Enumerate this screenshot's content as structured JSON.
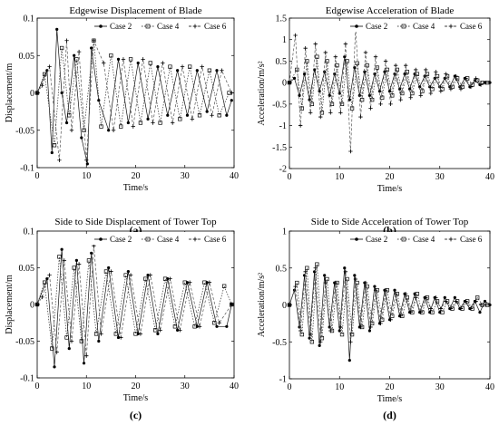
{
  "chart_data": [
    {
      "panel": "(a)",
      "type": "line",
      "title": "Edgewise Displacement of Blade",
      "xlabel": "Time/s",
      "ylabel": "Displacement/m",
      "xlim": [
        0,
        40
      ],
      "ylim": [
        -0.1,
        0.1
      ],
      "xticks": [
        "0",
        "10",
        "20",
        "30",
        "40"
      ],
      "yticks": [
        "-0.1",
        "-0.05",
        "0",
        "0.05",
        "0.1"
      ],
      "legend": "top-right",
      "series": [
        {
          "name": "Case 2",
          "marker": "dot",
          "x": [
            0.0,
            2.0,
            3.0,
            4.0,
            5.0,
            6.0,
            7.5,
            9.0,
            10.2,
            11.0,
            12.5,
            14.5,
            16.5,
            18.5,
            20.5,
            22.5,
            24.5,
            26.5,
            28.5,
            30.5,
            32.5,
            34.5,
            36.5,
            38.5,
            39.5
          ],
          "y": [
            0.0,
            0.03,
            -0.08,
            0.085,
            0.0,
            -0.04,
            0.05,
            -0.06,
            -0.095,
            0.06,
            -0.01,
            -0.05,
            0.045,
            -0.04,
            0.04,
            -0.035,
            0.035,
            -0.03,
            0.03,
            -0.03,
            0.03,
            -0.025,
            0.03,
            -0.03,
            -0.01
          ]
        },
        {
          "name": "Case 4",
          "marker": "square",
          "x": [
            0.0,
            1.5,
            3.5,
            5.0,
            6.5,
            8.0,
            9.5,
            11.5,
            13.0,
            15.0,
            17.0,
            19.0,
            21.0,
            23.0,
            25.0,
            27.0,
            29.0,
            31.0,
            33.0,
            35.0,
            37.0,
            39.0
          ],
          "y": [
            0.0,
            0.025,
            -0.07,
            0.06,
            -0.03,
            0.045,
            -0.05,
            0.07,
            -0.045,
            0.05,
            -0.045,
            0.045,
            -0.04,
            0.04,
            -0.04,
            0.035,
            -0.035,
            0.035,
            -0.03,
            0.03,
            -0.03,
            0.0
          ]
        },
        {
          "name": "Case 6",
          "marker": "plus",
          "x": [
            0.0,
            1.0,
            2.5,
            4.5,
            6.0,
            7.0,
            8.5,
            10.0,
            11.5,
            13.5,
            15.5,
            17.5,
            19.5,
            21.5,
            23.5,
            25.5,
            27.5,
            29.5,
            31.5,
            33.5,
            35.5,
            37.5,
            39.5
          ],
          "y": [
            0.0,
            0.01,
            0.035,
            -0.09,
            0.07,
            -0.05,
            0.055,
            -0.09,
            0.07,
            0.04,
            -0.05,
            0.045,
            -0.045,
            0.045,
            -0.04,
            0.04,
            -0.04,
            0.035,
            -0.035,
            0.035,
            -0.03,
            0.03,
            0.0
          ]
        }
      ]
    },
    {
      "panel": "(b)",
      "type": "line",
      "title": "Edgewise Acceleration of Blade",
      "xlabel": "Time/s",
      "ylabel": "Acceleration/m/s²",
      "xlim": [
        0,
        40
      ],
      "ylim": [
        -2,
        1.5
      ],
      "xticks": [
        "0",
        "10",
        "20",
        "30",
        "40"
      ],
      "yticks": [
        "-2",
        "-1.5",
        "-1",
        "-0.5",
        "0",
        "0.5",
        "1",
        "1.5"
      ],
      "legend": "top-right",
      "series": [
        {
          "name": "Case 2",
          "marker": "dot",
          "x": [
            0,
            1,
            2,
            3,
            4,
            5,
            6,
            7,
            8,
            9,
            10,
            11,
            12,
            13,
            14,
            15,
            16,
            17,
            18,
            19,
            20,
            21,
            22,
            23,
            24,
            25,
            26,
            27,
            28,
            29,
            30,
            31,
            32,
            33,
            34,
            35,
            36,
            37,
            38,
            39,
            40
          ],
          "y": [
            0.0,
            0.1,
            -0.3,
            0.2,
            -0.4,
            0.3,
            -0.2,
            0.25,
            -0.3,
            0.2,
            -0.25,
            0.6,
            -0.4,
            0.35,
            -0.3,
            0.25,
            -0.3,
            0.2,
            -0.2,
            0.25,
            -0.2,
            0.2,
            -0.15,
            0.2,
            -0.15,
            0.2,
            -0.1,
            0.15,
            -0.1,
            0.1,
            -0.1,
            0.1,
            -0.1,
            0.15,
            -0.1,
            0.1,
            -0.1,
            0.05,
            -0.05,
            0.0,
            0.0
          ]
        },
        {
          "name": "Case 4",
          "marker": "square",
          "x": [
            0,
            1.5,
            2.5,
            3.5,
            4.5,
            5.5,
            6.5,
            7.5,
            8.5,
            9.5,
            10.5,
            11.5,
            12.5,
            13.5,
            14.5,
            15.5,
            16.5,
            17.5,
            18.5,
            19.5,
            20.5,
            21.5,
            22.5,
            23.5,
            24.5,
            25.5,
            26.5,
            27.5,
            28.5,
            29.5,
            30.5,
            31.5,
            32.5,
            33.5,
            34.5,
            35.5,
            36.5,
            37.5,
            38.5,
            39.5
          ],
          "y": [
            0.0,
            0.3,
            -0.6,
            0.5,
            -0.5,
            0.6,
            -0.7,
            0.5,
            -0.5,
            0.4,
            -0.5,
            0.5,
            -0.6,
            0.45,
            -0.4,
            0.4,
            -0.4,
            0.35,
            -0.35,
            0.3,
            -0.3,
            0.3,
            -0.25,
            0.25,
            -0.25,
            0.2,
            -0.2,
            0.2,
            -0.15,
            0.15,
            -0.15,
            0.15,
            -0.1,
            0.1,
            -0.1,
            0.1,
            -0.05,
            0.05,
            0.0,
            0.0
          ]
        },
        {
          "name": "Case 6",
          "marker": "plus",
          "x": [
            0,
            1.2,
            2.2,
            3.2,
            4.2,
            5.2,
            6.2,
            7.2,
            8.2,
            9.2,
            10.2,
            11.2,
            12.2,
            13.2,
            14.2,
            15.2,
            16.2,
            17.2,
            18.2,
            19.2,
            20.2,
            21.2,
            22.2,
            23.2,
            24.2,
            25.2,
            26.2,
            27.2,
            28.2,
            29.2,
            30.2,
            31.2,
            32.2,
            33.2,
            34.2,
            35.2,
            36.2,
            37.2,
            38.2,
            39.2
          ],
          "y": [
            0.0,
            1.1,
            -1.0,
            0.8,
            -0.7,
            0.9,
            -0.8,
            0.7,
            -0.7,
            0.6,
            -0.7,
            0.9,
            -1.6,
            1.3,
            -0.8,
            0.7,
            -0.6,
            0.6,
            -0.5,
            0.5,
            -0.5,
            0.4,
            -0.4,
            0.4,
            -0.35,
            0.3,
            -0.3,
            0.3,
            -0.25,
            0.25,
            -0.2,
            0.2,
            -0.15,
            0.15,
            -0.15,
            0.1,
            -0.1,
            0.1,
            -0.05,
            0.0
          ]
        }
      ]
    },
    {
      "panel": "(c)",
      "type": "line",
      "title": "Side to Side Displacement of Tower Top",
      "xlabel": "Time/s",
      "ylabel": "Displacement/m",
      "xlim": [
        0,
        40
      ],
      "ylim": [
        -0.1,
        0.1
      ],
      "xticks": [
        "0",
        "10",
        "20",
        "30",
        "40"
      ],
      "yticks": [
        "-0.1",
        "-0.05",
        "0",
        "0.05",
        "0.1"
      ],
      "legend": "top-right",
      "series": [
        {
          "name": "Case 2",
          "marker": "dot",
          "x": [
            0.0,
            2.0,
            3.5,
            5.0,
            6.5,
            8.0,
            9.5,
            11.0,
            12.5,
            14.5,
            16.5,
            18.5,
            20.5,
            22.5,
            24.5,
            26.5,
            28.5,
            30.5,
            32.5,
            34.5,
            36.5,
            38.5,
            39.5
          ],
          "y": [
            0.0,
            0.035,
            -0.085,
            0.075,
            -0.06,
            0.06,
            -0.08,
            0.07,
            -0.05,
            0.05,
            -0.045,
            0.045,
            -0.04,
            0.04,
            -0.04,
            0.035,
            -0.035,
            0.03,
            -0.03,
            0.03,
            -0.03,
            -0.03,
            0.0
          ]
        },
        {
          "name": "Case 4",
          "marker": "square",
          "x": [
            0.0,
            1.5,
            3.0,
            4.5,
            6.0,
            7.5,
            9.0,
            10.5,
            12.0,
            14.0,
            16.0,
            18.0,
            20.0,
            22.0,
            24.0,
            26.0,
            28.0,
            30.0,
            32.0,
            34.0,
            36.0,
            38.0,
            39.5
          ],
          "y": [
            0.0,
            0.03,
            -0.06,
            0.065,
            -0.045,
            0.05,
            -0.05,
            0.06,
            -0.04,
            0.045,
            -0.04,
            0.04,
            -0.04,
            0.035,
            -0.035,
            0.035,
            -0.03,
            0.03,
            -0.03,
            0.03,
            -0.025,
            0.025,
            0.0
          ]
        },
        {
          "name": "Case 6",
          "marker": "plus",
          "x": [
            0.0,
            1.0,
            2.5,
            4.0,
            5.5,
            7.0,
            8.5,
            10.0,
            11.5,
            13.0,
            15.0,
            17.0,
            19.0,
            21.0,
            23.0,
            25.0,
            27.0,
            29.0,
            31.0,
            33.0,
            35.0,
            37.0,
            39.5
          ],
          "y": [
            0.0,
            0.01,
            0.04,
            -0.065,
            0.06,
            -0.05,
            0.055,
            -0.07,
            0.08,
            -0.04,
            0.045,
            -0.045,
            0.04,
            -0.04,
            0.04,
            -0.035,
            0.035,
            -0.035,
            0.03,
            -0.03,
            0.03,
            -0.025,
            0.0
          ]
        }
      ]
    },
    {
      "panel": "(d)",
      "type": "line",
      "title": "Side to Side Acceleration of Tower Top",
      "xlabel": "Time/s",
      "ylabel": "Acceleration/m/s²",
      "xlim": [
        0,
        40
      ],
      "ylim": [
        -1,
        1
      ],
      "xticks": [
        "0",
        "10",
        "20",
        "30",
        "40"
      ],
      "yticks": [
        "-1",
        "-0.5",
        "0",
        "0.5",
        "1"
      ],
      "legend": "top-right",
      "series": [
        {
          "name": "Case 2",
          "marker": "dot",
          "x": [
            0,
            1,
            2,
            3,
            4,
            5,
            6,
            7,
            8,
            9,
            10,
            11,
            12,
            13,
            14,
            15,
            16,
            17,
            18,
            19,
            20,
            21,
            22,
            23,
            24,
            25,
            26,
            27,
            28,
            29,
            30,
            31,
            32,
            33,
            34,
            35,
            36,
            37,
            38,
            39,
            40
          ],
          "y": [
            0.0,
            0.2,
            -0.3,
            0.4,
            -0.45,
            0.45,
            -0.55,
            0.4,
            -0.3,
            0.3,
            -0.35,
            0.5,
            -0.75,
            0.4,
            -0.3,
            0.3,
            -0.35,
            0.25,
            -0.25,
            0.2,
            -0.2,
            0.2,
            -0.15,
            0.15,
            -0.1,
            0.15,
            -0.1,
            0.1,
            -0.1,
            0.1,
            -0.1,
            0.1,
            -0.05,
            0.1,
            -0.05,
            0.05,
            -0.05,
            0.05,
            -0.1,
            0.05,
            0.0
          ]
        },
        {
          "name": "Case 4",
          "marker": "square",
          "x": [
            0,
            1.5,
            2.5,
            3.5,
            4.5,
            5.5,
            6.5,
            7.5,
            8.5,
            9.5,
            10.5,
            11.5,
            12.5,
            13.5,
            14.5,
            15.5,
            16.5,
            17.5,
            18.5,
            19.5,
            20.5,
            21.5,
            22.5,
            23.5,
            24.5,
            25.5,
            26.5,
            27.5,
            28.5,
            29.5,
            30.5,
            31.5,
            32.5,
            33.5,
            34.5,
            35.5,
            36.5,
            37.5,
            38.5,
            39.5
          ],
          "y": [
            0.0,
            0.3,
            -0.4,
            0.5,
            -0.5,
            0.55,
            -0.45,
            0.35,
            -0.35,
            0.3,
            -0.4,
            0.35,
            -0.4,
            0.3,
            -0.3,
            0.25,
            -0.25,
            0.2,
            -0.2,
            0.2,
            -0.15,
            0.15,
            -0.15,
            0.1,
            -0.1,
            0.15,
            -0.1,
            0.1,
            -0.1,
            0.05,
            -0.1,
            0.05,
            -0.05,
            0.05,
            -0.05,
            0.05,
            -0.05,
            0.1,
            0.0,
            0.0
          ]
        },
        {
          "name": "Case 6",
          "marker": "plus",
          "x": [
            0,
            1.2,
            2.2,
            3.2,
            4.2,
            5.2,
            6.2,
            7.2,
            8.2,
            9.2,
            10.2,
            11.2,
            12.2,
            13.2,
            14.2,
            15.2,
            16.2,
            17.2,
            18.2,
            19.2,
            20.2,
            21.2,
            22.2,
            23.2,
            24.2,
            25.2,
            26.2,
            27.2,
            28.2,
            29.2,
            30.2,
            31.2,
            32.2,
            33.2,
            34.2,
            35.2,
            36.2,
            37.2,
            38.2,
            39.2
          ],
          "y": [
            0.0,
            0.25,
            -0.35,
            0.45,
            -0.4,
            0.5,
            -0.5,
            0.3,
            -0.35,
            0.3,
            -0.3,
            0.45,
            -0.5,
            0.35,
            -0.3,
            0.3,
            -0.3,
            0.2,
            -0.25,
            0.2,
            -0.2,
            0.15,
            -0.15,
            0.15,
            -0.1,
            0.1,
            -0.1,
            0.1,
            -0.05,
            0.1,
            -0.05,
            0.05,
            -0.05,
            0.05,
            -0.05,
            0.05,
            -0.05,
            0.05,
            0.0,
            0.0
          ]
        }
      ]
    }
  ]
}
